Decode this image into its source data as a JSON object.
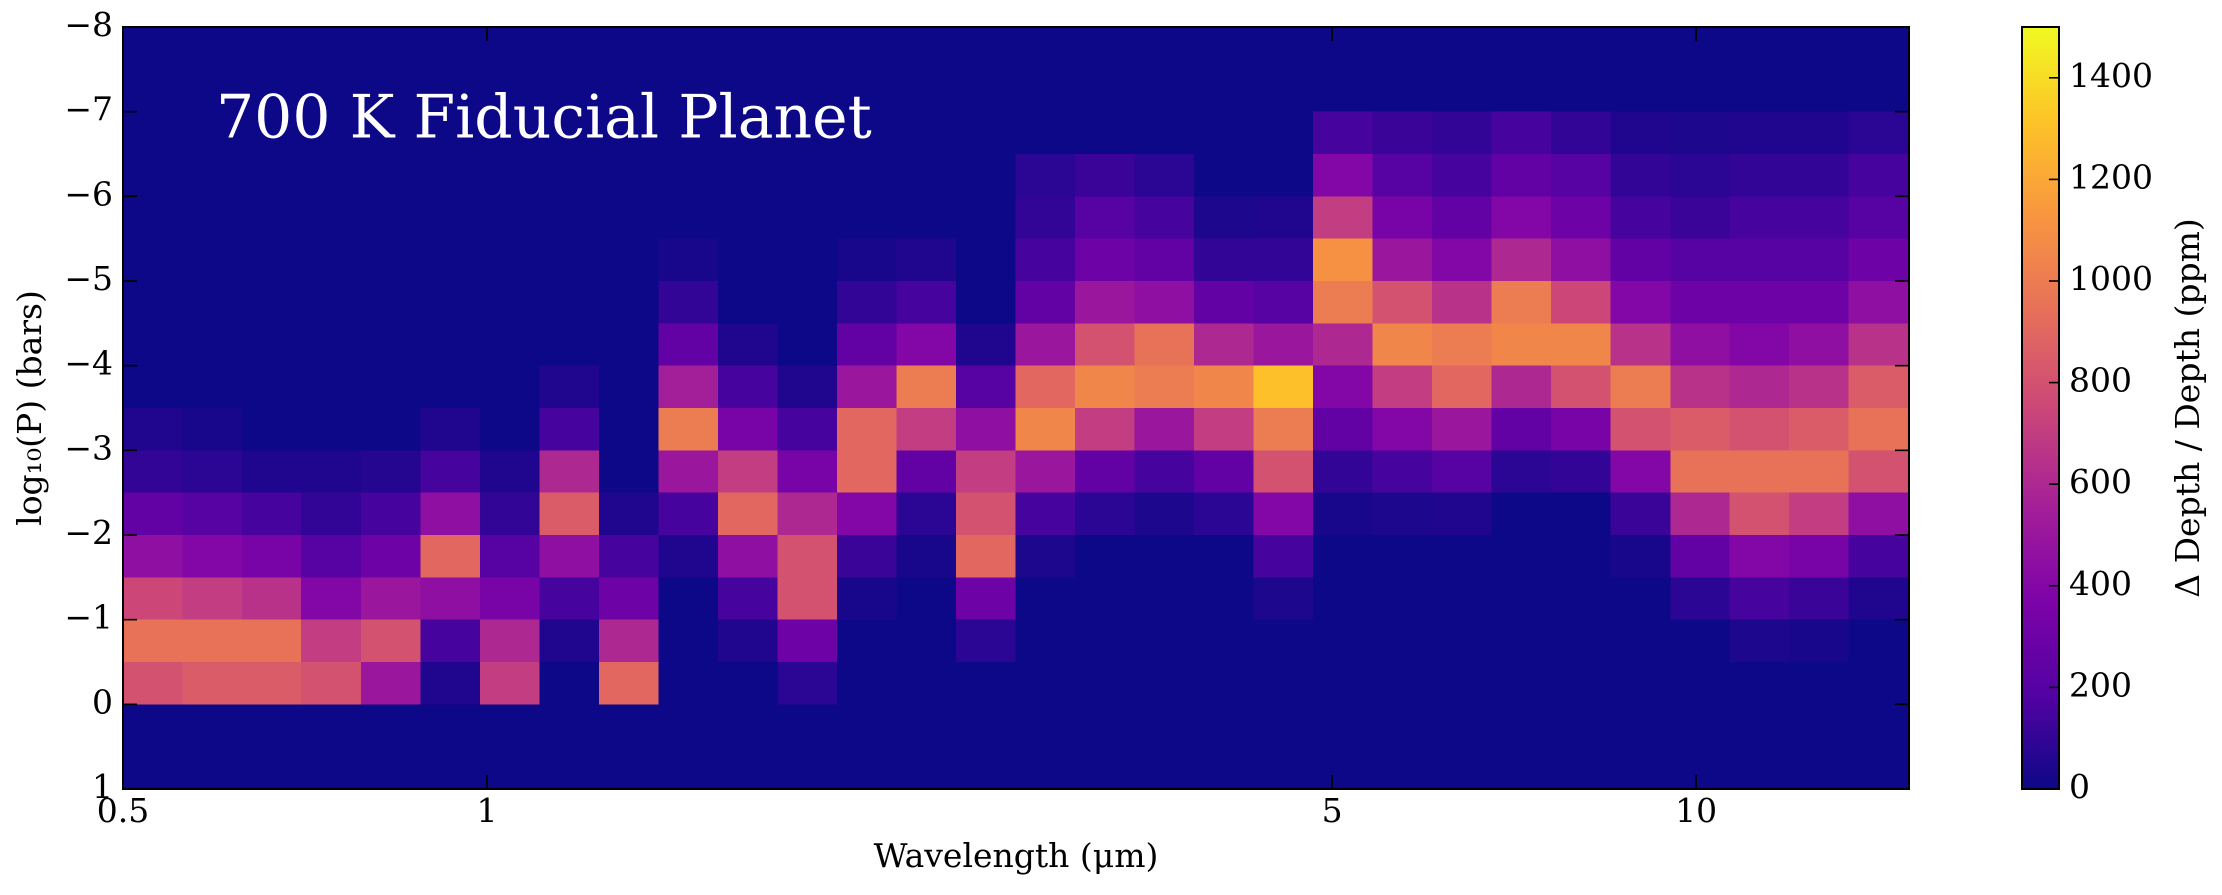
{
  "chart_data": {
    "type": "heatmap",
    "annotation": "700 K Fiducial Planet",
    "xlabel": "Wavelength (μm)",
    "ylabel": "log₁₀(P) (bars)",
    "colorbar_label": "Δ Depth / Depth (ppm)",
    "colormap": "plasma",
    "xscale": "log",
    "xlim": [
      0.5,
      15
    ],
    "xticks": [
      0.5,
      1,
      5,
      10
    ],
    "ylim": [
      1,
      -8
    ],
    "yticks": [
      1,
      0,
      {
        "value": -1,
        "label": "−1"
      },
      {
        "value": -2,
        "label": "−2"
      },
      {
        "value": -3,
        "label": "−3"
      },
      {
        "value": -4,
        "label": "−4"
      },
      {
        "value": -5,
        "label": "−5"
      },
      {
        "value": -6,
        "label": "−6"
      },
      {
        "value": -7,
        "label": "−7"
      },
      {
        "value": -8,
        "label": "−8"
      }
    ],
    "clim": [
      0,
      1500
    ],
    "cticks": [
      0,
      200,
      400,
      600,
      800,
      1000,
      1200,
      1400
    ],
    "x_edges": [
      0.5,
      0.56,
      0.627,
      0.702,
      0.787,
      0.881,
      0.987,
      1.105,
      1.238,
      1.386,
      1.553,
      1.739,
      1.948,
      2.182,
      2.443,
      2.737,
      3.065,
      3.433,
      3.845,
      4.306,
      4.823,
      5.402,
      6.05,
      6.776,
      7.589,
      8.5,
      9.52,
      10.66,
      11.94,
      13.37,
      15
    ],
    "y_edges": [
      -8,
      -7.5,
      -7,
      -6.5,
      -6,
      -5.5,
      -5,
      -4.5,
      -4,
      -3.5,
      -3,
      -2.5,
      -2,
      -1.5,
      -1,
      -0.5,
      0,
      0.5,
      1
    ],
    "z": [
      [
        0,
        0,
        0,
        0,
        0,
        0,
        0,
        0,
        0,
        50,
        100,
        250,
        450,
        750,
        950,
        800,
        0,
        0
      ],
      [
        0,
        0,
        0,
        0,
        0,
        0,
        0,
        0,
        0,
        30,
        80,
        200,
        400,
        700,
        950,
        850,
        0,
        0
      ],
      [
        0,
        0,
        0,
        0,
        0,
        0,
        0,
        0,
        0,
        0,
        50,
        150,
        350,
        650,
        950,
        850,
        0,
        0
      ],
      [
        0,
        0,
        0,
        0,
        0,
        0,
        0,
        0,
        0,
        0,
        50,
        100,
        200,
        400,
        700,
        800,
        0,
        0
      ],
      [
        0,
        0,
        0,
        0,
        0,
        0,
        0,
        0,
        0,
        0,
        60,
        150,
        300,
        500,
        800,
        500,
        0,
        0
      ],
      [
        0,
        0,
        0,
        0,
        0,
        0,
        0,
        0,
        0,
        50,
        150,
        450,
        900,
        450,
        150,
        50,
        0,
        0
      ],
      [
        0,
        0,
        0,
        0,
        0,
        0,
        0,
        0,
        0,
        0,
        50,
        100,
        200,
        350,
        600,
        700,
        0,
        0
      ],
      [
        0,
        0,
        0,
        0,
        0,
        0,
        0,
        0,
        50,
        150,
        600,
        850,
        450,
        150,
        50,
        0,
        0,
        0
      ],
      [
        0,
        0,
        0,
        0,
        0,
        0,
        0,
        0,
        0,
        0,
        0,
        50,
        150,
        300,
        600,
        900,
        0,
        0
      ],
      [
        0,
        0,
        0,
        0,
        0,
        30,
        100,
        250,
        550,
        1000,
        500,
        150,
        50,
        0,
        0,
        0,
        0,
        0
      ],
      [
        0,
        0,
        0,
        0,
        0,
        0,
        0,
        50,
        150,
        350,
        700,
        900,
        450,
        150,
        50,
        0,
        0,
        0
      ],
      [
        0,
        0,
        0,
        0,
        0,
        0,
        0,
        0,
        50,
        150,
        350,
        600,
        800,
        800,
        300,
        80,
        0,
        0
      ],
      [
        0,
        0,
        0,
        0,
        0,
        30,
        100,
        250,
        500,
        900,
        900,
        400,
        120,
        30,
        0,
        0,
        0,
        0
      ],
      [
        0,
        0,
        0,
        0,
        0,
        50,
        150,
        400,
        1000,
        700,
        250,
        80,
        30,
        0,
        0,
        0,
        0,
        0
      ],
      [
        0,
        0,
        0,
        0,
        0,
        0,
        0,
        50,
        200,
        450,
        700,
        800,
        900,
        300,
        80,
        0,
        0,
        0
      ],
      [
        0,
        0,
        0,
        80,
        100,
        150,
        250,
        500,
        900,
        1050,
        500,
        150,
        40,
        0,
        0,
        0,
        0,
        0
      ],
      [
        0,
        0,
        0,
        120,
        200,
        300,
        500,
        800,
        1050,
        700,
        250,
        80,
        0,
        0,
        0,
        0,
        0,
        0
      ],
      [
        0,
        0,
        0,
        80,
        150,
        250,
        450,
        950,
        1000,
        500,
        150,
        40,
        0,
        0,
        0,
        0,
        0,
        0
      ],
      [
        0,
        0,
        0,
        0,
        40,
        100,
        250,
        600,
        1050,
        700,
        250,
        80,
        0,
        0,
        0,
        0,
        0,
        0
      ],
      [
        0,
        0,
        0,
        0,
        50,
        100,
        200,
        500,
        1300,
        1000,
        800,
        400,
        150,
        40,
        0,
        0,
        0,
        0
      ],
      [
        0,
        0,
        150,
        400,
        700,
        1100,
        1000,
        600,
        400,
        250,
        100,
        30,
        0,
        0,
        0,
        0,
        0,
        0
      ],
      [
        0,
        0,
        120,
        200,
        350,
        500,
        800,
        1050,
        700,
        400,
        150,
        40,
        0,
        0,
        0,
        0,
        0,
        0
      ],
      [
        0,
        0,
        100,
        150,
        250,
        400,
        650,
        1000,
        900,
        500,
        200,
        50,
        0,
        0,
        0,
        0,
        0,
        0
      ],
      [
        0,
        0,
        150,
        250,
        400,
        600,
        1000,
        1050,
        600,
        250,
        80,
        0,
        0,
        0,
        0,
        0,
        0,
        0
      ],
      [
        0,
        0,
        100,
        200,
        300,
        450,
        750,
        1050,
        800,
        350,
        100,
        0,
        0,
        0,
        0,
        0,
        0,
        0
      ],
      [
        0,
        0,
        50,
        100,
        150,
        250,
        400,
        650,
        1000,
        800,
        400,
        120,
        30,
        0,
        0,
        0,
        0,
        0
      ],
      [
        0,
        0,
        40,
        80,
        120,
        200,
        300,
        450,
        650,
        850,
        950,
        600,
        250,
        80,
        0,
        0,
        0,
        0
      ],
      [
        0,
        0,
        50,
        100,
        150,
        200,
        300,
        400,
        600,
        800,
        950,
        800,
        400,
        150,
        40,
        0,
        0,
        0
      ],
      [
        0,
        0,
        50,
        100,
        150,
        200,
        300,
        450,
        650,
        850,
        950,
        700,
        350,
        120,
        30,
        0,
        0,
        0
      ],
      [
        0,
        0,
        80,
        150,
        200,
        300,
        450,
        650,
        850,
        950,
        800,
        450,
        150,
        50,
        0,
        0,
        0,
        0
      ]
    ]
  }
}
